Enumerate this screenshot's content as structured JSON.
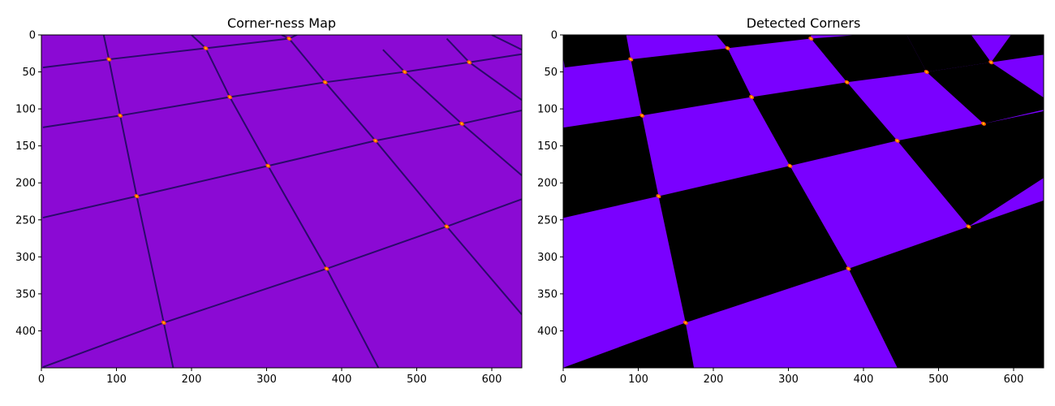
{
  "figure": {
    "panels": [
      {
        "title": "Corner-ness Map",
        "background_color": "#8b0ad4",
        "line_color": "#2a0a6a"
      },
      {
        "title": "Detected Corners",
        "purple_color": "#7a00ff",
        "black_color": "#000000"
      }
    ],
    "x_ticks": [
      "0",
      "100",
      "200",
      "300",
      "400",
      "500",
      "600"
    ],
    "y_ticks": [
      "0",
      "50",
      "100",
      "150",
      "200",
      "250",
      "300",
      "350",
      "400"
    ],
    "x_range": [
      0,
      640
    ],
    "y_range": [
      0,
      450
    ],
    "corners": [
      {
        "x": 90,
        "y": 33
      },
      {
        "x": 219,
        "y": 18
      },
      {
        "x": 330,
        "y": 5
      },
      {
        "x": 105,
        "y": 109
      },
      {
        "x": 251,
        "y": 84
      },
      {
        "x": 378,
        "y": 64
      },
      {
        "x": 484,
        "y": 50
      },
      {
        "x": 570,
        "y": 37
      },
      {
        "x": 127,
        "y": 218
      },
      {
        "x": 302,
        "y": 177
      },
      {
        "x": 445,
        "y": 143
      },
      {
        "x": 560,
        "y": 120
      },
      {
        "x": 163,
        "y": 389
      },
      {
        "x": 380,
        "y": 316
      },
      {
        "x": 540,
        "y": 259
      }
    ],
    "corner_color": "#ff5a00",
    "corner_highlight": "#ffd400"
  }
}
